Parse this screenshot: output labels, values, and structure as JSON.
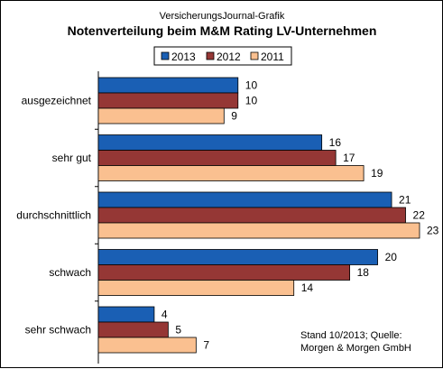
{
  "chart_data": {
    "type": "bar",
    "orientation": "horizontal",
    "supertitle": "VersicherungsJournal-Grafik",
    "title": "Notenverteilung beim M&M Rating LV-Unternehmen",
    "categories": [
      "ausgezeichnet",
      "sehr gut",
      "durchschnittlich",
      "schwach",
      "sehr schwach"
    ],
    "series": [
      {
        "name": "2013",
        "color": "#1a5fb4",
        "values": [
          10,
          16,
          21,
          20,
          4
        ]
      },
      {
        "name": "2012",
        "color": "#953735",
        "values": [
          10,
          17,
          22,
          18,
          5
        ]
      },
      {
        "name": "2011",
        "color": "#fac090",
        "values": [
          9,
          19,
          23,
          14,
          7
        ]
      }
    ],
    "xlim": [
      0,
      23
    ],
    "grid": false,
    "legend_position": "top",
    "annotation": {
      "line1": "Stand 10/2013; Quelle:",
      "line2": "Morgen & Morgen GmbH"
    }
  }
}
